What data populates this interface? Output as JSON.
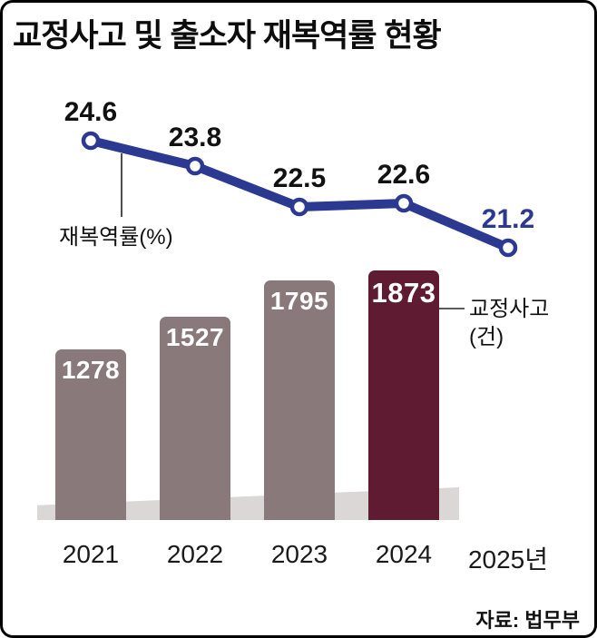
{
  "title": "교정사고 및 출소자 재복역률 현황",
  "source": "자료: 법무부",
  "annotations": {
    "rate_label": "재복역률(%)",
    "accidents_label_line1": "교정사고",
    "accidents_label_line2": "(건)"
  },
  "colors": {
    "line": "#2b3990",
    "line_highlight_label": "#2b3990",
    "bar": "#8a797b",
    "bar_highlight": "#5e1b31",
    "shadow": "#dbd7d6",
    "text": "#111111",
    "background": "#ffffff"
  },
  "chart_data": [
    {
      "type": "line",
      "name": "재복역률(%)",
      "categories": [
        "2021",
        "2022",
        "2023",
        "2024",
        "2025년"
      ],
      "values": [
        24.6,
        23.8,
        22.5,
        22.6,
        21.2
      ],
      "value_labels": [
        "24.6",
        "23.8",
        "22.5",
        "22.6",
        "21.2"
      ],
      "highlight_index": 4,
      "ylim": [
        21,
        25
      ],
      "legend_position": "left-annotation"
    },
    {
      "type": "bar",
      "name": "교정사고(건)",
      "categories": [
        "2021",
        "2022",
        "2023",
        "2024",
        "2025년"
      ],
      "values": [
        1278,
        1527,
        1795,
        1873,
        null
      ],
      "value_labels": [
        "1278",
        "1527",
        "1795",
        "1873",
        ""
      ],
      "highlight_index": 3,
      "ylim": [
        0,
        1900
      ],
      "legend_position": "right-annotation"
    }
  ]
}
